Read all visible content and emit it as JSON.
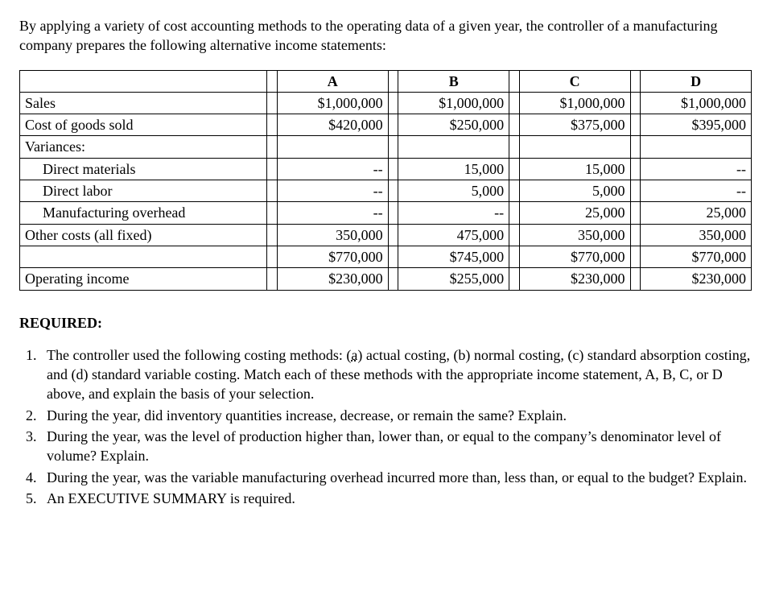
{
  "intro": "By applying a variety of cost accounting methods to the operating data of a given year, the controller of a manufacturing company prepares the following alternative income statements:",
  "table": {
    "col_headers": [
      "A",
      "B",
      "C",
      "D"
    ],
    "rows": [
      {
        "label": "Sales",
        "indent": false,
        "values": [
          "$1,000,000",
          "$1,000,000",
          "$1,000,000",
          "$1,000,000"
        ]
      },
      {
        "label": "Cost of goods sold",
        "indent": false,
        "values": [
          "$420,000",
          "$250,000",
          "$375,000",
          "$395,000"
        ]
      },
      {
        "label": "Variances:",
        "indent": false,
        "values": [
          "",
          "",
          "",
          ""
        ]
      },
      {
        "label": "Direct materials",
        "indent": true,
        "values": [
          "--",
          "15,000",
          "15,000",
          "--"
        ]
      },
      {
        "label": "Direct labor",
        "indent": true,
        "values": [
          "--",
          "5,000",
          "5,000",
          "--"
        ]
      },
      {
        "label": "Manufacturing overhead",
        "indent": true,
        "values": [
          "--",
          "--",
          "25,000",
          "25,000"
        ]
      },
      {
        "label": "Other costs (all fixed)",
        "indent": false,
        "values": [
          "350,000",
          "475,000",
          "350,000",
          "350,000"
        ]
      },
      {
        "label": "",
        "indent": false,
        "values": [
          "$770,000",
          "$745,000",
          "$770,000",
          "$770,000"
        ]
      },
      {
        "label": "Operating income",
        "indent": false,
        "values": [
          "$230,000",
          "$255,000",
          "$230,000",
          "$230,000"
        ]
      }
    ]
  },
  "required_heading": "REQUIRED:",
  "requirements": {
    "q1_pre": "The controller used the following costing methods: (",
    "q1_a": "a",
    "q1_post": ") actual costing, (b) normal costing, (c) standard absorption costing, and (d) standard variable costing. Match each of these methods with the appropriate income statement, A, B, C, or D above, and explain the basis of your selection.",
    "q2": "During the year, did inventory quantities increase, decrease, or remain the same? Explain.",
    "q3": "During the year, was the level of production higher than, lower than, or equal to the company’s denominator level of volume? Explain.",
    "q4": "During the year, was the variable manufacturing overhead incurred more than, less than, or equal to the budget? Explain.",
    "q5": "An EXECUTIVE SUMMARY is required."
  }
}
